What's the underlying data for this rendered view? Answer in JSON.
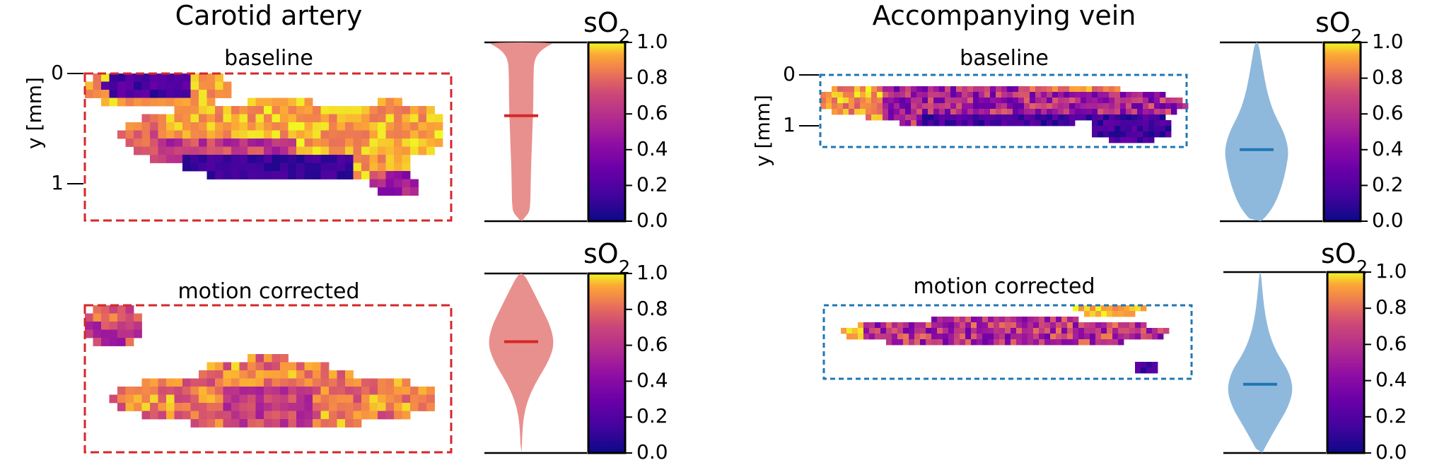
{
  "chart_data": {
    "type": "heatmap",
    "colormap": "plasma",
    "value_range": [
      0,
      1
    ],
    "colors": {
      "artery": "#d62728",
      "artery_violin": "#e8908e",
      "vein": "#1f77b4",
      "vein_violin": "#8fb9dc"
    },
    "panels": [
      {
        "group": "Carotid artery",
        "title": "Carotid artery",
        "ylabel": "y [mm]",
        "yticks": [
          "0",
          "1"
        ],
        "box_color": "#d62728",
        "violin_color": "#e8908e",
        "colorbar_label": "sO",
        "colorbar_sub": "2",
        "colorbar_ticks": [
          "1.0",
          "0.8",
          "0.6",
          "0.4",
          "0.2",
          "0.0"
        ],
        "rows": [
          {
            "label": "baseline",
            "median": 0.59,
            "violin": [
              [
                0,
                0.02
              ],
              [
                0.02,
                0.1
              ],
              [
                0.05,
                0.24
              ],
              [
                0.1,
                0.27
              ],
              [
                0.2,
                0.28
              ],
              [
                0.3,
                0.29
              ],
              [
                0.4,
                0.31
              ],
              [
                0.5,
                0.33
              ],
              [
                0.6,
                0.35
              ],
              [
                0.7,
                0.36
              ],
              [
                0.8,
                0.36
              ],
              [
                0.9,
                0.38
              ],
              [
                0.95,
                0.55
              ],
              [
                0.98,
                0.78
              ],
              [
                1.0,
                1.0
              ]
            ]
          },
          {
            "label": "motion corrected",
            "median": 0.62,
            "violin": [
              [
                0,
                0.01
              ],
              [
                0.1,
                0.03
              ],
              [
                0.2,
                0.07
              ],
              [
                0.3,
                0.2
              ],
              [
                0.4,
                0.45
              ],
              [
                0.5,
                0.78
              ],
              [
                0.6,
                0.98
              ],
              [
                0.7,
                0.88
              ],
              [
                0.8,
                0.62
              ],
              [
                0.9,
                0.36
              ],
              [
                1.0,
                0.08
              ]
            ]
          }
        ]
      },
      {
        "group": "Accompanying vein",
        "title": "Accompanying vein",
        "ylabel": "y [mm]",
        "yticks": [
          "0",
          "1"
        ],
        "box_color": "#1f77b4",
        "violin_color": "#8fb9dc",
        "colorbar_label": "sO",
        "colorbar_sub": "2",
        "colorbar_ticks": [
          "1.0",
          "0.8",
          "0.6",
          "0.4",
          "0.2",
          "0.0"
        ],
        "rows": [
          {
            "label": "baseline",
            "median": 0.4,
            "violin": [
              [
                0,
                0.12
              ],
              [
                0.03,
                0.3
              ],
              [
                0.1,
                0.55
              ],
              [
                0.2,
                0.75
              ],
              [
                0.3,
                0.88
              ],
              [
                0.4,
                0.95
              ],
              [
                0.5,
                0.8
              ],
              [
                0.6,
                0.52
              ],
              [
                0.7,
                0.34
              ],
              [
                0.8,
                0.23
              ],
              [
                0.9,
                0.14
              ],
              [
                1.0,
                0.05
              ]
            ]
          },
          {
            "label": "motion corrected",
            "median": 0.38,
            "violin": [
              [
                0,
                0.06
              ],
              [
                0.05,
                0.2
              ],
              [
                0.15,
                0.5
              ],
              [
                0.25,
                0.82
              ],
              [
                0.35,
                0.98
              ],
              [
                0.45,
                0.85
              ],
              [
                0.55,
                0.5
              ],
              [
                0.65,
                0.28
              ],
              [
                0.75,
                0.16
              ],
              [
                0.85,
                0.09
              ],
              [
                1.0,
                0.02
              ]
            ]
          }
        ]
      }
    ]
  }
}
